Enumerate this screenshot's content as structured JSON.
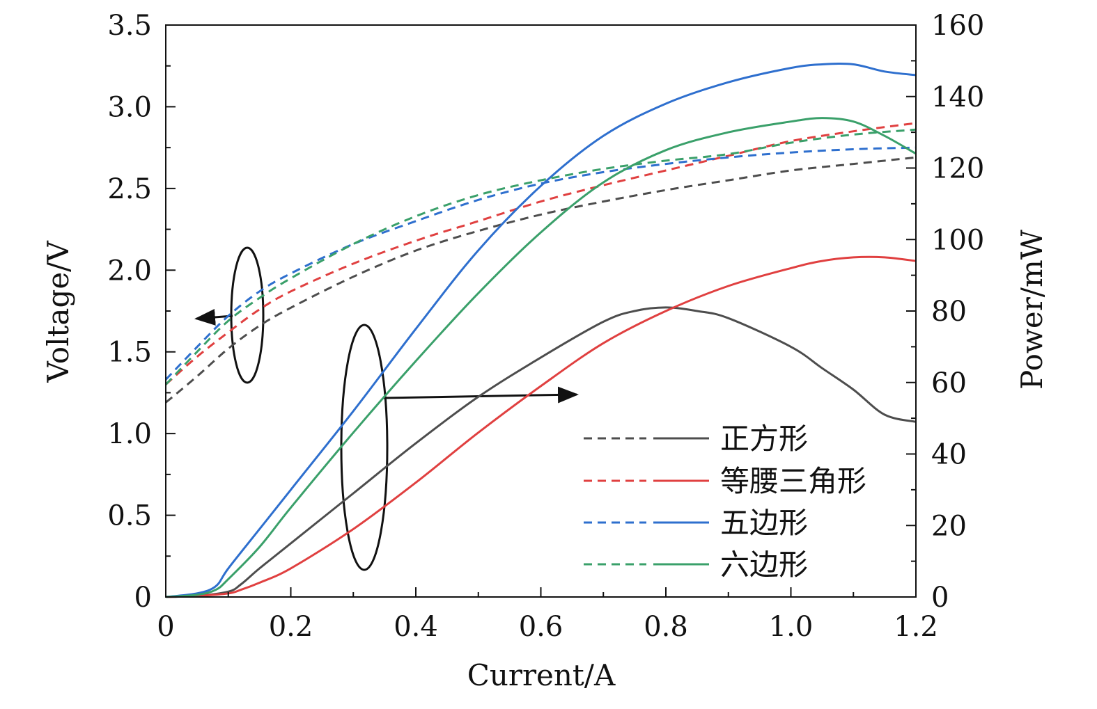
{
  "chart_data": {
    "type": "line",
    "title": "",
    "xlabel": "Current/A",
    "ylabel_left": "Voltage/V",
    "ylabel_right": "Power/mW",
    "xlim": [
      0,
      1.2
    ],
    "ylim_left": [
      0,
      3.5
    ],
    "ylim_right": [
      0,
      160
    ],
    "x_ticks": [
      0,
      0.2,
      0.4,
      0.6,
      0.8,
      1.0,
      1.2
    ],
    "x_tick_labels": [
      "0",
      "0.2",
      "0.4",
      "0.6",
      "0.8",
      "1.0",
      "1.2"
    ],
    "y_left_ticks": [
      0,
      0.5,
      1.0,
      1.5,
      2.0,
      2.5,
      3.0,
      3.5
    ],
    "y_left_tick_labels": [
      "0",
      "0.5",
      "1.0",
      "1.5",
      "2.0",
      "2.5",
      "3.0",
      "3.5"
    ],
    "y_right_ticks": [
      0,
      20,
      40,
      60,
      80,
      100,
      120,
      140,
      160
    ],
    "y_right_tick_labels": [
      "0",
      "20",
      "40",
      "60",
      "80",
      "100",
      "120",
      "140",
      "160"
    ],
    "grid": false,
    "legend_position": "bottom-right",
    "series": [
      {
        "name": "正方形",
        "color": "#4d4d4d",
        "voltage": {
          "x": [
            0,
            0.05,
            0.1,
            0.15,
            0.2,
            0.3,
            0.4,
            0.5,
            0.6,
            0.7,
            0.8,
            0.9,
            1.0,
            1.1,
            1.2
          ],
          "y": [
            1.19,
            1.35,
            1.52,
            1.66,
            1.77,
            1.96,
            2.12,
            2.24,
            2.34,
            2.42,
            2.49,
            2.55,
            2.61,
            2.65,
            2.69
          ]
        },
        "power": {
          "x": [
            0,
            0.05,
            0.1,
            0.12,
            0.15,
            0.2,
            0.3,
            0.4,
            0.5,
            0.6,
            0.7,
            0.75,
            0.8,
            0.85,
            0.9,
            1.0,
            1.05,
            1.1,
            1.15,
            1.2
          ],
          "y": [
            0,
            0.3,
            1.5,
            3.5,
            8,
            15,
            29,
            43,
            56,
            67,
            77,
            80,
            81,
            80,
            78,
            70,
            64,
            58,
            51,
            49
          ]
        }
      },
      {
        "name": "等腰三角形",
        "color": "#e04040",
        "voltage": {
          "x": [
            0,
            0.05,
            0.1,
            0.15,
            0.2,
            0.3,
            0.4,
            0.5,
            0.6,
            0.7,
            0.8,
            0.9,
            1.0,
            1.1,
            1.2
          ],
          "y": [
            1.3,
            1.47,
            1.62,
            1.76,
            1.87,
            2.04,
            2.18,
            2.3,
            2.42,
            2.52,
            2.61,
            2.7,
            2.79,
            2.85,
            2.9
          ]
        },
        "power": {
          "x": [
            0,
            0.05,
            0.1,
            0.12,
            0.15,
            0.2,
            0.3,
            0.4,
            0.5,
            0.6,
            0.7,
            0.8,
            0.9,
            1.0,
            1.05,
            1.1,
            1.15,
            1.2
          ],
          "y": [
            0,
            0.3,
            1.0,
            2.0,
            4,
            8,
            19,
            32,
            46,
            59,
            71,
            80,
            87,
            92,
            94,
            95,
            95,
            94
          ]
        }
      },
      {
        "name": "五边形",
        "color": "#2e6fce",
        "voltage": {
          "x": [
            0,
            0.05,
            0.1,
            0.15,
            0.2,
            0.3,
            0.4,
            0.5,
            0.6,
            0.7,
            0.8,
            0.9,
            1.0,
            1.1,
            1.2
          ],
          "y": [
            1.33,
            1.53,
            1.72,
            1.87,
            1.98,
            2.16,
            2.3,
            2.43,
            2.53,
            2.6,
            2.65,
            2.69,
            2.72,
            2.74,
            2.75
          ]
        },
        "power": {
          "x": [
            0,
            0.05,
            0.08,
            0.1,
            0.15,
            0.2,
            0.3,
            0.4,
            0.5,
            0.6,
            0.7,
            0.8,
            0.9,
            1.0,
            1.05,
            1.1,
            1.15,
            1.2
          ],
          "y": [
            0,
            1.0,
            3.0,
            8,
            19,
            30,
            52,
            75,
            97,
            115,
            129,
            138,
            144,
            148,
            149,
            149,
            147,
            146
          ]
        }
      },
      {
        "name": "六边形",
        "color": "#3aa06a",
        "voltage": {
          "x": [
            0,
            0.05,
            0.1,
            0.15,
            0.2,
            0.3,
            0.4,
            0.5,
            0.6,
            0.7,
            0.8,
            0.9,
            1.0,
            1.1,
            1.2
          ],
          "y": [
            1.3,
            1.5,
            1.69,
            1.83,
            1.95,
            2.16,
            2.33,
            2.46,
            2.55,
            2.62,
            2.67,
            2.71,
            2.78,
            2.83,
            2.86
          ]
        },
        "power": {
          "x": [
            0,
            0.05,
            0.08,
            0.1,
            0.15,
            0.2,
            0.3,
            0.4,
            0.5,
            0.6,
            0.7,
            0.8,
            0.9,
            1.0,
            1.05,
            1.1,
            1.15,
            1.2
          ],
          "y": [
            0,
            0.6,
            2.0,
            5,
            14,
            25,
            46,
            66,
            85,
            102,
            116,
            125,
            130,
            133,
            134,
            133,
            129,
            124
          ]
        }
      }
    ]
  }
}
